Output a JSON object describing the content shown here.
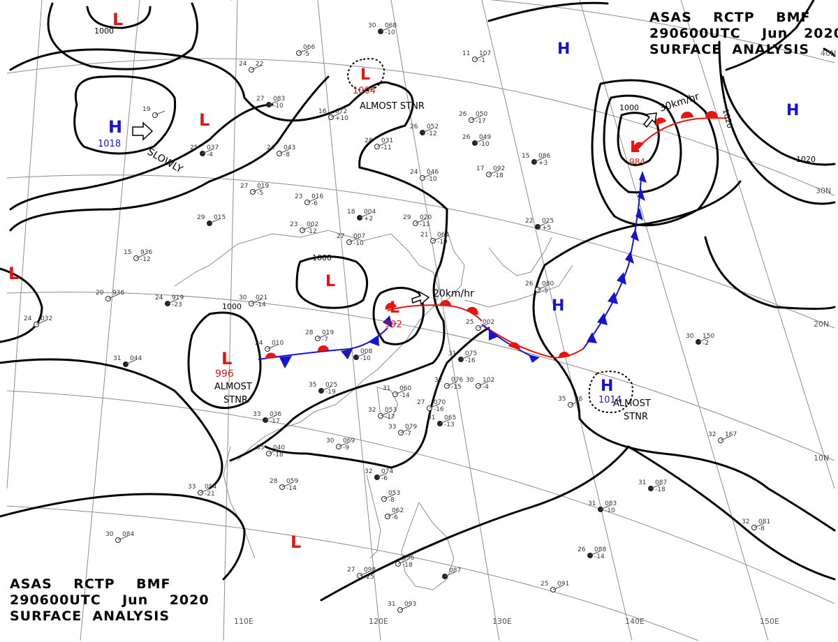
{
  "header": {
    "line1": "ASAS    RCTP    BMF",
    "line2": "290600UTC    Jun   2020",
    "line3": "SURFACE  ANALYSIS"
  },
  "footer": {
    "line1": "ASAS    RCTP    BMF",
    "line2": "290600UTC    Jun    2020",
    "line3": "SURFACE  ANALYSIS"
  },
  "grid": {
    "lat_labels": [
      "40N",
      "30N",
      "20N",
      "10N"
    ],
    "lon_labels": [
      "110E",
      "120E",
      "130E",
      "140E",
      "150E"
    ]
  },
  "pressure_centers": [
    {
      "type": "L",
      "value": "1000",
      "note": ""
    },
    {
      "type": "H",
      "value": "1018",
      "note": ""
    },
    {
      "type": "L",
      "value": "",
      "note": ""
    },
    {
      "type": "L",
      "value": "1004",
      "note": "ALMOST STNR"
    },
    {
      "type": "L",
      "value": "",
      "note": ""
    },
    {
      "type": "L",
      "value": "996",
      "note": "ALMOST STNR"
    },
    {
      "type": "L",
      "value": "",
      "note": ""
    },
    {
      "type": "L",
      "value": "992",
      "note": ""
    },
    {
      "type": "L",
      "value": "984",
      "note": ""
    },
    {
      "type": "H",
      "value": "",
      "note": ""
    },
    {
      "type": "H",
      "value": "",
      "note": ""
    },
    {
      "type": "H",
      "value": "",
      "note": ""
    },
    {
      "type": "H",
      "value": "1014",
      "note": "ALMOST STNR"
    },
    {
      "type": "L",
      "value": "",
      "note": ""
    }
  ],
  "movement_labels": [
    "SLOWLY",
    "20km/hr",
    "30km/hr"
  ],
  "isobar_labels": [
    "1000",
    "1000",
    "1000",
    "1000",
    "1020",
    "1020"
  ],
  "notes": {
    "almost": "ALMOST",
    "stnr": "STNR"
  },
  "colors": {
    "low": "#e8140f",
    "high": "#1414d2",
    "warm_front": "#e8140f",
    "cold_front": "#1414d2",
    "isobar": "#000000",
    "grid": "#8c8c8c",
    "coast": "#8c8c8c"
  },
  "stations": [
    {
      "t": "30",
      "p": "068",
      "d": "-10"
    },
    {
      "t": "",
      "p": "066",
      "d": "-5"
    },
    {
      "t": "24",
      "p": "22",
      "d": ""
    },
    {
      "t": "27",
      "p": "083",
      "d": "-10"
    },
    {
      "t": "16",
      "p": "072",
      "d": "+10"
    },
    {
      "t": "19",
      "p": "",
      "d": ""
    },
    {
      "t": "25",
      "p": "037",
      "d": "-4"
    },
    {
      "t": "24",
      "p": "043",
      "d": "-8"
    },
    {
      "t": "28",
      "p": "031",
      "d": "-11"
    },
    {
      "t": "26",
      "p": "052",
      "d": "-12"
    },
    {
      "t": "11",
      "p": "107",
      "d": "-1"
    },
    {
      "t": "26",
      "p": "050",
      "d": "-17"
    },
    {
      "t": "26",
      "p": "049",
      "d": "-10"
    },
    {
      "t": "24",
      "p": "046",
      "d": "-10"
    },
    {
      "t": "17",
      "p": "092",
      "d": "-18"
    },
    {
      "t": "15",
      "p": "086",
      "d": "+3"
    },
    {
      "t": "27",
      "p": "019",
      "d": "-5"
    },
    {
      "t": "23",
      "p": "016",
      "d": "-6"
    },
    {
      "t": "29",
      "p": "015",
      "d": ""
    },
    {
      "t": "23",
      "p": "002",
      "d": "-12"
    },
    {
      "t": "27",
      "p": "007",
      "d": "-10"
    },
    {
      "t": "18",
      "p": "004",
      "d": "+2"
    },
    {
      "t": "29",
      "p": "020",
      "d": "-11"
    },
    {
      "t": "21",
      "p": "064",
      "d": "-10"
    },
    {
      "t": "22",
      "p": "025",
      "d": "+5"
    },
    {
      "t": "15",
      "p": "936",
      "d": "-12"
    },
    {
      "t": "20",
      "p": "936",
      "d": ""
    },
    {
      "t": "24",
      "p": "919",
      "d": "-23"
    },
    {
      "t": "30",
      "p": "021",
      "d": "-14"
    },
    {
      "t": "24",
      "p": "032",
      "d": ""
    },
    {
      "t": "31",
      "p": "044",
      "d": ""
    },
    {
      "t": "28",
      "p": "019",
      "d": "-7"
    },
    {
      "t": "24",
      "p": "010",
      "d": ""
    },
    {
      "t": "31",
      "p": "008",
      "d": "-10"
    },
    {
      "t": "26",
      "p": "080",
      "d": "-5"
    },
    {
      "t": "25",
      "p": "002",
      "d": ""
    },
    {
      "t": "31",
      "p": "075",
      "d": "-16"
    },
    {
      "t": "32",
      "p": "076",
      "d": "-15"
    },
    {
      "t": "30",
      "p": "102",
      "d": "-4"
    },
    {
      "t": "35",
      "p": "025",
      "d": "-19"
    },
    {
      "t": "31",
      "p": "060",
      "d": "-14"
    },
    {
      "t": "27",
      "p": "070",
      "d": "-16"
    },
    {
      "t": "33",
      "p": "036",
      "d": "-17"
    },
    {
      "t": "32",
      "p": "053",
      "d": "-17"
    },
    {
      "t": "33",
      "p": "079",
      "d": "-7"
    },
    {
      "t": "31",
      "p": "065",
      "d": "-13"
    },
    {
      "t": "35",
      "p": "040",
      "d": "-18"
    },
    {
      "t": "30",
      "p": "069",
      "d": "-9"
    },
    {
      "t": "30",
      "p": "150",
      "d": "-2"
    },
    {
      "t": "32",
      "p": "167",
      "d": ""
    },
    {
      "t": "35",
      "p": "26",
      "d": ""
    },
    {
      "t": "31",
      "p": "087",
      "d": "-18"
    },
    {
      "t": "33",
      "p": "054",
      "d": "-21"
    },
    {
      "t": "28",
      "p": "059",
      "d": "-14"
    },
    {
      "t": "32",
      "p": "074",
      "d": "-6"
    },
    {
      "t": "",
      "p": "053",
      "d": "-8"
    },
    {
      "t": "",
      "p": "062",
      "d": "-6"
    },
    {
      "t": "31",
      "p": "083",
      "d": "-10"
    },
    {
      "t": "32",
      "p": "081",
      "d": "-8"
    },
    {
      "t": "30",
      "p": "084",
      "d": ""
    },
    {
      "t": "26",
      "p": "088",
      "d": "-14"
    },
    {
      "t": "",
      "p": "096",
      "d": "-18"
    },
    {
      "t": "27",
      "p": "098",
      "d": "-25"
    },
    {
      "t": "",
      "p": "087",
      "d": ""
    },
    {
      "t": "25",
      "p": "091",
      "d": ""
    },
    {
      "t": "31",
      "p": "093",
      "d": ""
    }
  ]
}
